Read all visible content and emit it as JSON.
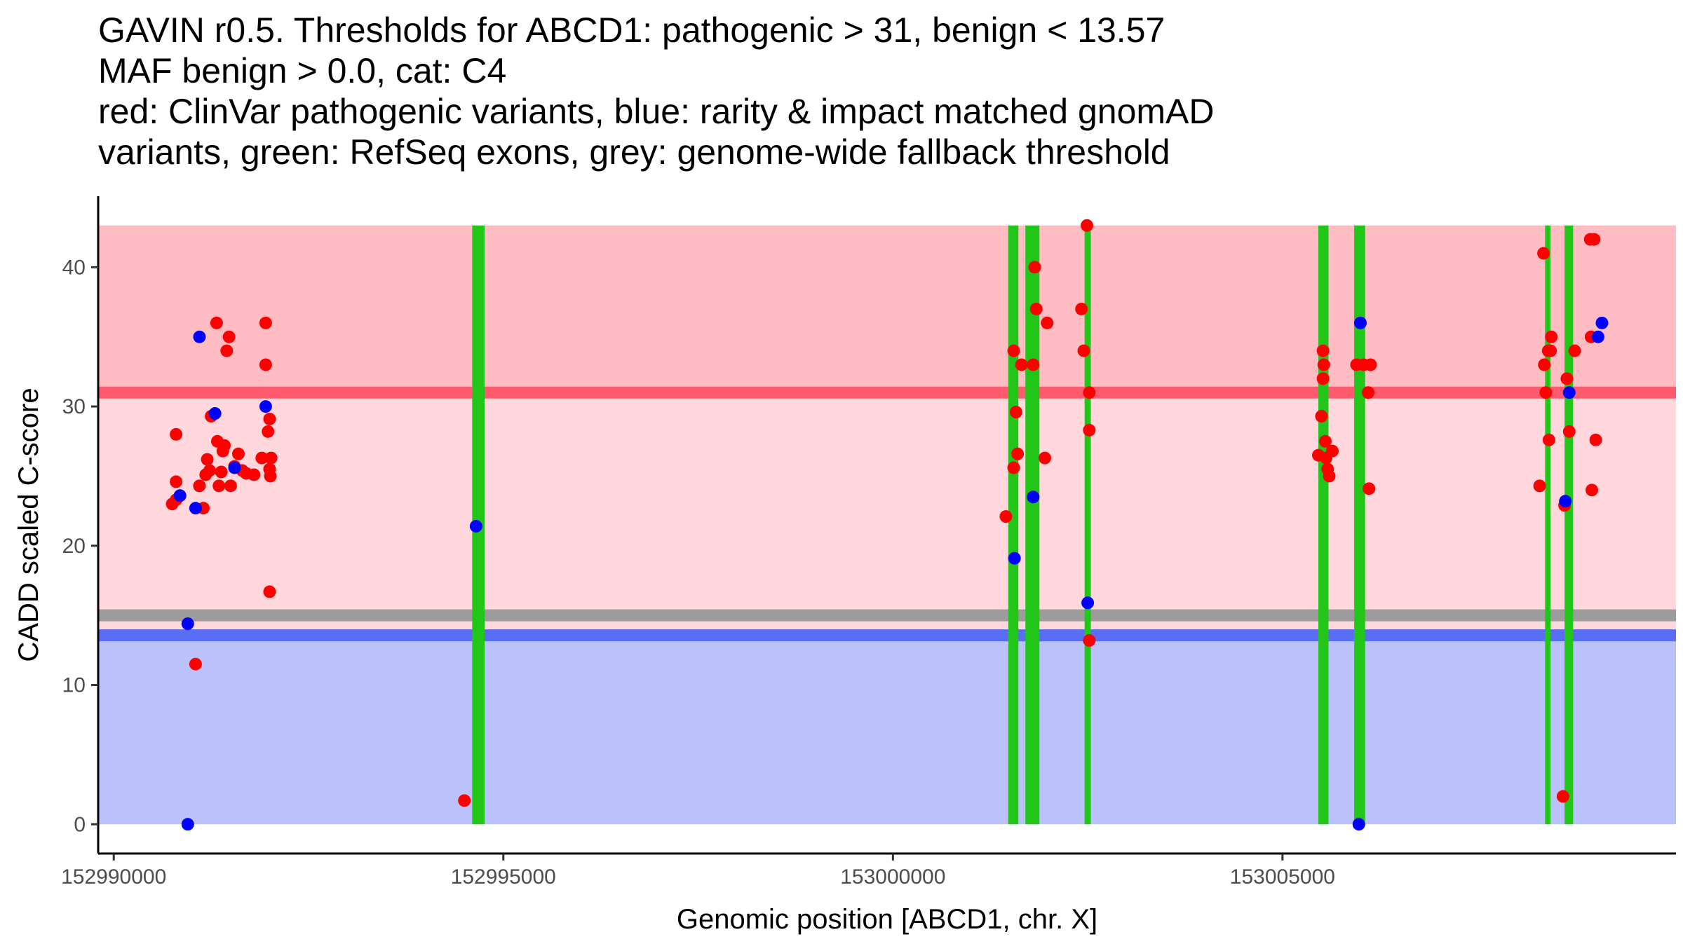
{
  "chart_data": {
    "type": "scatter",
    "title_lines": [
      "GAVIN r0.5. Thresholds for ABCD1: pathogenic > 31, benign < 13.57",
      "MAF benign > 0.0, cat: C4",
      "red: ClinVar pathogenic variants, blue: rarity & impact matched gnomAD",
      "variants, green: RefSeq exons, grey: genome-wide fallback threshold"
    ],
    "xlabel": "Genomic position [ABCD1, chr. X]",
    "ylabel": "CADD scaled C-score",
    "xlim": [
      152989800,
      153010050
    ],
    "ylim": [
      -2.1,
      45.1
    ],
    "x_ticks": [
      152990000,
      152995000,
      153000000,
      153005000
    ],
    "x_tick_labels": [
      "152990000",
      "152995000",
      "153000000",
      "153005000"
    ],
    "y_ticks": [
      0,
      10,
      20,
      30,
      40
    ],
    "y_tick_labels": [
      "0",
      "10",
      "20",
      "30",
      "40"
    ],
    "thresholds": {
      "pathogenic": 31,
      "benign": 13.57,
      "genome_wide_fallback": 15
    },
    "regions": [
      {
        "name": "pathogenic-region",
        "y_from": 31,
        "y_to": 43,
        "color": "#ffbcc3"
      },
      {
        "name": "intermediate-region",
        "y_from": 13.57,
        "y_to": 31,
        "color": "#ffd7dc"
      },
      {
        "name": "benign-region",
        "y_from": 0,
        "y_to": 13.57,
        "color": "#bbc1fa"
      }
    ],
    "threshold_colors": {
      "pathogenic": "#ff5a6e",
      "benign": "#5a6ef5",
      "fallback": "#9c9c9c"
    },
    "exons": [
      {
        "start": 152994600,
        "end": 152994760
      },
      {
        "start": 153001480,
        "end": 153001610
      },
      {
        "start": 153001700,
        "end": 153001880
      },
      {
        "start": 153002460,
        "end": 153002540
      },
      {
        "start": 153005460,
        "end": 153005590
      },
      {
        "start": 153005920,
        "end": 153006060
      },
      {
        "start": 153008370,
        "end": 153008440
      },
      {
        "start": 153008620,
        "end": 153008730
      }
    ],
    "exon_color": "#22c619",
    "series": [
      {
        "name": "ClinVar pathogenic",
        "color": "#ff0000",
        "points": [
          [
            152990750,
            23.0
          ],
          [
            152990800,
            23.3
          ],
          [
            152990850,
            23.6
          ],
          [
            152990800,
            24.6
          ],
          [
            152990800,
            28.0
          ],
          [
            152991050,
            11.5
          ],
          [
            152991150,
            22.7
          ],
          [
            152991100,
            24.3
          ],
          [
            152991180,
            25.1
          ],
          [
            152991200,
            26.2
          ],
          [
            152991230,
            25.4
          ],
          [
            152991250,
            29.3
          ],
          [
            152991320,
            36.0
          ],
          [
            152991330,
            27.5
          ],
          [
            152991350,
            24.3
          ],
          [
            152991380,
            25.3
          ],
          [
            152991400,
            26.8
          ],
          [
            152991420,
            27.2
          ],
          [
            152991450,
            34.0
          ],
          [
            152991480,
            35.0
          ],
          [
            152991500,
            24.3
          ],
          [
            152991550,
            25.7
          ],
          [
            152991600,
            26.6
          ],
          [
            152991650,
            25.4
          ],
          [
            152991700,
            25.2
          ],
          [
            152991800,
            25.1
          ],
          [
            152991900,
            26.3
          ],
          [
            152991950,
            36.0
          ],
          [
            152991950,
            33.0
          ],
          [
            152992000,
            29.1
          ],
          [
            152991980,
            28.2
          ],
          [
            152992020,
            26.3
          ],
          [
            152992000,
            25.5
          ],
          [
            152992010,
            25.0
          ],
          [
            152992000,
            16.7
          ],
          [
            152994500,
            1.7
          ],
          [
            153001450,
            22.1
          ],
          [
            153001550,
            25.6
          ],
          [
            153001550,
            34.0
          ],
          [
            153001580,
            29.6
          ],
          [
            153001600,
            26.6
          ],
          [
            153001650,
            33.0
          ],
          [
            153001800,
            33.0
          ],
          [
            153001820,
            40.0
          ],
          [
            153001840,
            37.0
          ],
          [
            153001950,
            26.3
          ],
          [
            153001980,
            36.0
          ],
          [
            153002420,
            37.0
          ],
          [
            153002450,
            34.0
          ],
          [
            153002490,
            43.0
          ],
          [
            153002520,
            31.0
          ],
          [
            153002520,
            28.3
          ],
          [
            153002520,
            13.2
          ],
          [
            153005460,
            26.5
          ],
          [
            153005500,
            29.3
          ],
          [
            153005520,
            34.0
          ],
          [
            153005530,
            33.0
          ],
          [
            153005520,
            32.0
          ],
          [
            153005550,
            27.5
          ],
          [
            153005560,
            26.3
          ],
          [
            153005580,
            25.5
          ],
          [
            153005600,
            25.0
          ],
          [
            153005640,
            26.8
          ],
          [
            153005950,
            33.0
          ],
          [
            153006040,
            33.0
          ],
          [
            153006100,
            31.0
          ],
          [
            153006110,
            24.1
          ],
          [
            153006130,
            33.0
          ],
          [
            153008300,
            24.3
          ],
          [
            153008350,
            41.0
          ],
          [
            153008360,
            33.0
          ],
          [
            153008380,
            31.0
          ],
          [
            153008420,
            27.6
          ],
          [
            153008410,
            34.0
          ],
          [
            153008450,
            35.0
          ],
          [
            153008440,
            34.0
          ],
          [
            153008600,
            2.0
          ],
          [
            153008620,
            22.9
          ],
          [
            153008650,
            32.0
          ],
          [
            153008680,
            28.2
          ],
          [
            153008750,
            34.0
          ],
          [
            153008950,
            42.0
          ],
          [
            153009000,
            42.0
          ],
          [
            153008960,
            35.0
          ],
          [
            153008970,
            24.0
          ],
          [
            153009020,
            27.6
          ]
        ]
      },
      {
        "name": "gnomAD rarity & impact matched",
        "color": "#0000ff",
        "points": [
          [
            152990850,
            23.6
          ],
          [
            152990950,
            0.0
          ],
          [
            152990950,
            14.4
          ],
          [
            152991100,
            35.0
          ],
          [
            152991050,
            22.7
          ],
          [
            152991300,
            29.5
          ],
          [
            152991550,
            25.6
          ],
          [
            152991950,
            30.0
          ],
          [
            152994650,
            21.4
          ],
          [
            153001560,
            19.1
          ],
          [
            153001800,
            23.5
          ],
          [
            153002500,
            15.9
          ],
          [
            153006000,
            36.0
          ],
          [
            153005980,
            0.0
          ],
          [
            153008630,
            23.2
          ],
          [
            153008680,
            31.0
          ],
          [
            153009050,
            35.0
          ],
          [
            153009100,
            36.0
          ]
        ]
      }
    ]
  }
}
